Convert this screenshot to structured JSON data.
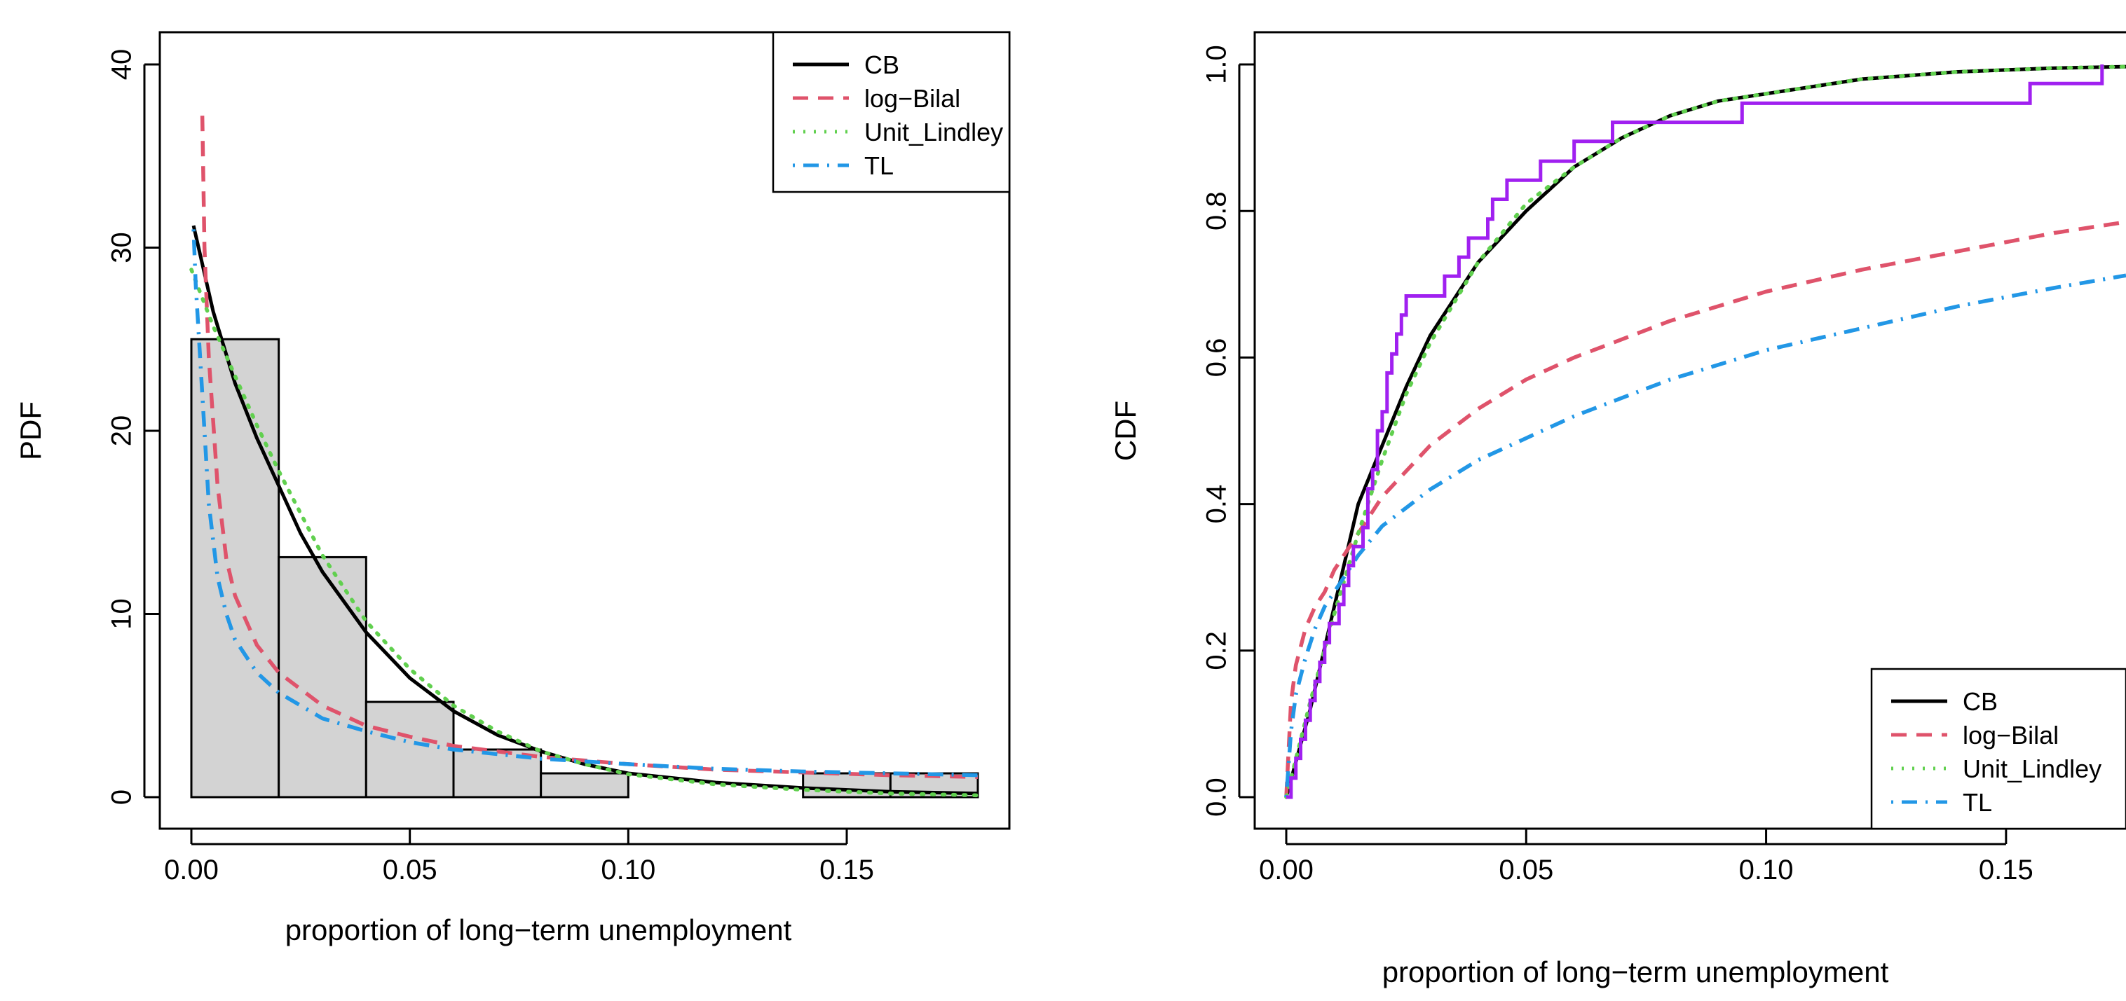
{
  "chart_data": [
    {
      "type": "histogram",
      "panel": "left",
      "xlabel": "proportion of long−term unemployment",
      "ylabel": "PDF",
      "xlim": [
        0,
        0.18
      ],
      "ylim": [
        0,
        40
      ],
      "x_ticks": [
        0,
        0.05,
        0.1,
        0.15
      ],
      "x_tick_labels": [
        "0.00",
        "0.05",
        "0.10",
        "0.15"
      ],
      "y_ticks": [
        0,
        10,
        20,
        30,
        40
      ],
      "y_tick_labels": [
        "0",
        "10",
        "20",
        "30",
        "40"
      ],
      "legend_position": "top-right",
      "histogram": {
        "breaks": [
          0,
          0.02,
          0.04,
          0.06,
          0.08,
          0.1,
          0.12,
          0.14,
          0.16,
          0.18
        ],
        "densities": [
          25,
          13.1,
          5.2,
          2.6,
          1.3,
          0,
          0,
          1.3,
          1.3
        ]
      },
      "series": [
        {
          "name": "CB",
          "color": "#000000",
          "dash": "solid",
          "x": [
            0.0005,
            0.005,
            0.01,
            0.015,
            0.02,
            0.025,
            0.03,
            0.04,
            0.05,
            0.06,
            0.07,
            0.08,
            0.09,
            0.1,
            0.12,
            0.14,
            0.16,
            0.18
          ],
          "y": [
            31.2,
            26.5,
            22.6,
            19.6,
            17.0,
            14.4,
            12.3,
            9.0,
            6.5,
            4.7,
            3.4,
            2.5,
            1.8,
            1.3,
            0.8,
            0.5,
            0.3,
            0.2
          ]
        },
        {
          "name": "log−Bilal",
          "color": "#DF536B",
          "dash": "dashed",
          "x": [
            0.0025,
            0.003,
            0.004,
            0.006,
            0.008,
            0.01,
            0.015,
            0.02,
            0.03,
            0.04,
            0.05,
            0.06,
            0.08,
            0.1,
            0.12,
            0.14,
            0.16,
            0.18
          ],
          "y": [
            37.2,
            30.0,
            24.0,
            17.0,
            13.0,
            11.0,
            8.3,
            6.8,
            5.0,
            3.9,
            3.3,
            2.8,
            2.2,
            1.8,
            1.5,
            1.35,
            1.2,
            1.1
          ]
        },
        {
          "name": "Unit_Lindley",
          "color": "#61D04F",
          "dash": "dotted",
          "x": [
            0,
            0.005,
            0.01,
            0.015,
            0.02,
            0.025,
            0.03,
            0.04,
            0.05,
            0.06,
            0.07,
            0.08,
            0.09,
            0.1,
            0.12,
            0.14,
            0.16,
            0.18
          ],
          "y": [
            28.8,
            25.7,
            23.0,
            20.3,
            17.8,
            15.5,
            13.2,
            9.6,
            7.0,
            5.0,
            3.6,
            2.5,
            1.8,
            1.25,
            0.7,
            0.4,
            0.2,
            0.1
          ]
        },
        {
          "name": "TL",
          "color": "#2297E6",
          "dash": "dotdash",
          "x": [
            0.0005,
            0.001,
            0.002,
            0.003,
            0.004,
            0.006,
            0.008,
            0.01,
            0.015,
            0.02,
            0.03,
            0.04,
            0.05,
            0.06,
            0.08,
            0.1,
            0.12,
            0.14,
            0.16,
            0.18
          ],
          "y": [
            31.0,
            28.0,
            24.0,
            20.0,
            16.0,
            12.0,
            10.0,
            8.6,
            6.8,
            5.7,
            4.3,
            3.6,
            3.0,
            2.6,
            2.1,
            1.8,
            1.55,
            1.4,
            1.3,
            1.2
          ]
        }
      ]
    },
    {
      "type": "line",
      "panel": "right",
      "xlabel": "proportion of long−term unemployment",
      "ylabel": "CDF",
      "xlim": [
        0,
        0.175
      ],
      "ylim": [
        0,
        1.0
      ],
      "x_ticks": [
        0,
        0.05,
        0.1,
        0.15
      ],
      "x_tick_labels": [
        "0.00",
        "0.05",
        "0.10",
        "0.15"
      ],
      "y_ticks": [
        0,
        0.2,
        0.4,
        0.6,
        0.8,
        1.0
      ],
      "y_tick_labels": [
        "0.0",
        "0.2",
        "0.4",
        "0.6",
        "0.8",
        "1.0"
      ],
      "legend_position": "bottom-right",
      "ecdf": {
        "color": "#A020F0",
        "x": [
          0.001,
          0.002,
          0.003,
          0.004,
          0.005,
          0.006,
          0.007,
          0.008,
          0.009,
          0.011,
          0.012,
          0.013,
          0.014,
          0.016,
          0.017,
          0.018,
          0.019,
          0.02,
          0.021,
          0.022,
          0.023,
          0.024,
          0.025,
          0.033,
          0.036,
          0.038,
          0.042,
          0.043,
          0.046,
          0.053,
          0.06,
          0.068,
          0.073,
          0.08,
          0.095,
          0.101,
          0.155,
          0.17
        ],
        "y": [
          0.026,
          0.053,
          0.079,
          0.105,
          0.132,
          0.158,
          0.184,
          0.211,
          0.237,
          0.263,
          0.289,
          0.316,
          0.342,
          0.368,
          0.421,
          0.447,
          0.5,
          0.526,
          0.579,
          0.605,
          0.632,
          0.658,
          0.684,
          0.711,
          0.737,
          0.763,
          0.789,
          0.816,
          0.842,
          0.868,
          0.895,
          0.921,
          0.921,
          0.921,
          0.947,
          0.947,
          0.974,
          1.0
        ]
      },
      "series": [
        {
          "name": "CB",
          "color": "#000000",
          "dash": "solid",
          "x": [
            0,
            0.005,
            0.01,
            0.015,
            0.02,
            0.025,
            0.03,
            0.04,
            0.05,
            0.06,
            0.07,
            0.08,
            0.09,
            0.1,
            0.12,
            0.14,
            0.16,
            0.175
          ],
          "y": [
            0,
            0.12,
            0.26,
            0.4,
            0.48,
            0.56,
            0.63,
            0.73,
            0.8,
            0.86,
            0.9,
            0.93,
            0.95,
            0.96,
            0.98,
            0.99,
            0.995,
            0.997
          ]
        },
        {
          "name": "log−Bilal",
          "color": "#DF536B",
          "dash": "dashed",
          "x": [
            0,
            0.001,
            0.002,
            0.004,
            0.006,
            0.008,
            0.01,
            0.015,
            0.02,
            0.03,
            0.04,
            0.05,
            0.06,
            0.08,
            0.1,
            0.12,
            0.14,
            0.16,
            0.175
          ],
          "y": [
            0,
            0.13,
            0.18,
            0.23,
            0.26,
            0.28,
            0.31,
            0.36,
            0.41,
            0.48,
            0.53,
            0.57,
            0.6,
            0.65,
            0.69,
            0.72,
            0.745,
            0.77,
            0.785
          ]
        },
        {
          "name": "Unit_Lindley",
          "color": "#61D04F",
          "dash": "dotted",
          "x": [
            0,
            0.005,
            0.01,
            0.015,
            0.02,
            0.025,
            0.03,
            0.04,
            0.05,
            0.06,
            0.07,
            0.08,
            0.09,
            0.1,
            0.12,
            0.14,
            0.16,
            0.175
          ],
          "y": [
            0,
            0.13,
            0.25,
            0.36,
            0.46,
            0.55,
            0.62,
            0.73,
            0.81,
            0.86,
            0.9,
            0.93,
            0.95,
            0.96,
            0.98,
            0.99,
            0.995,
            0.997
          ]
        },
        {
          "name": "TL",
          "color": "#2297E6",
          "dash": "dotdash",
          "x": [
            0,
            0.001,
            0.002,
            0.004,
            0.006,
            0.008,
            0.01,
            0.015,
            0.02,
            0.03,
            0.04,
            0.05,
            0.06,
            0.08,
            0.1,
            0.12,
            0.14,
            0.16,
            0.175
          ],
          "y": [
            0,
            0.09,
            0.14,
            0.19,
            0.23,
            0.26,
            0.28,
            0.33,
            0.37,
            0.42,
            0.46,
            0.49,
            0.52,
            0.57,
            0.61,
            0.64,
            0.67,
            0.695,
            0.712
          ]
        }
      ]
    }
  ]
}
